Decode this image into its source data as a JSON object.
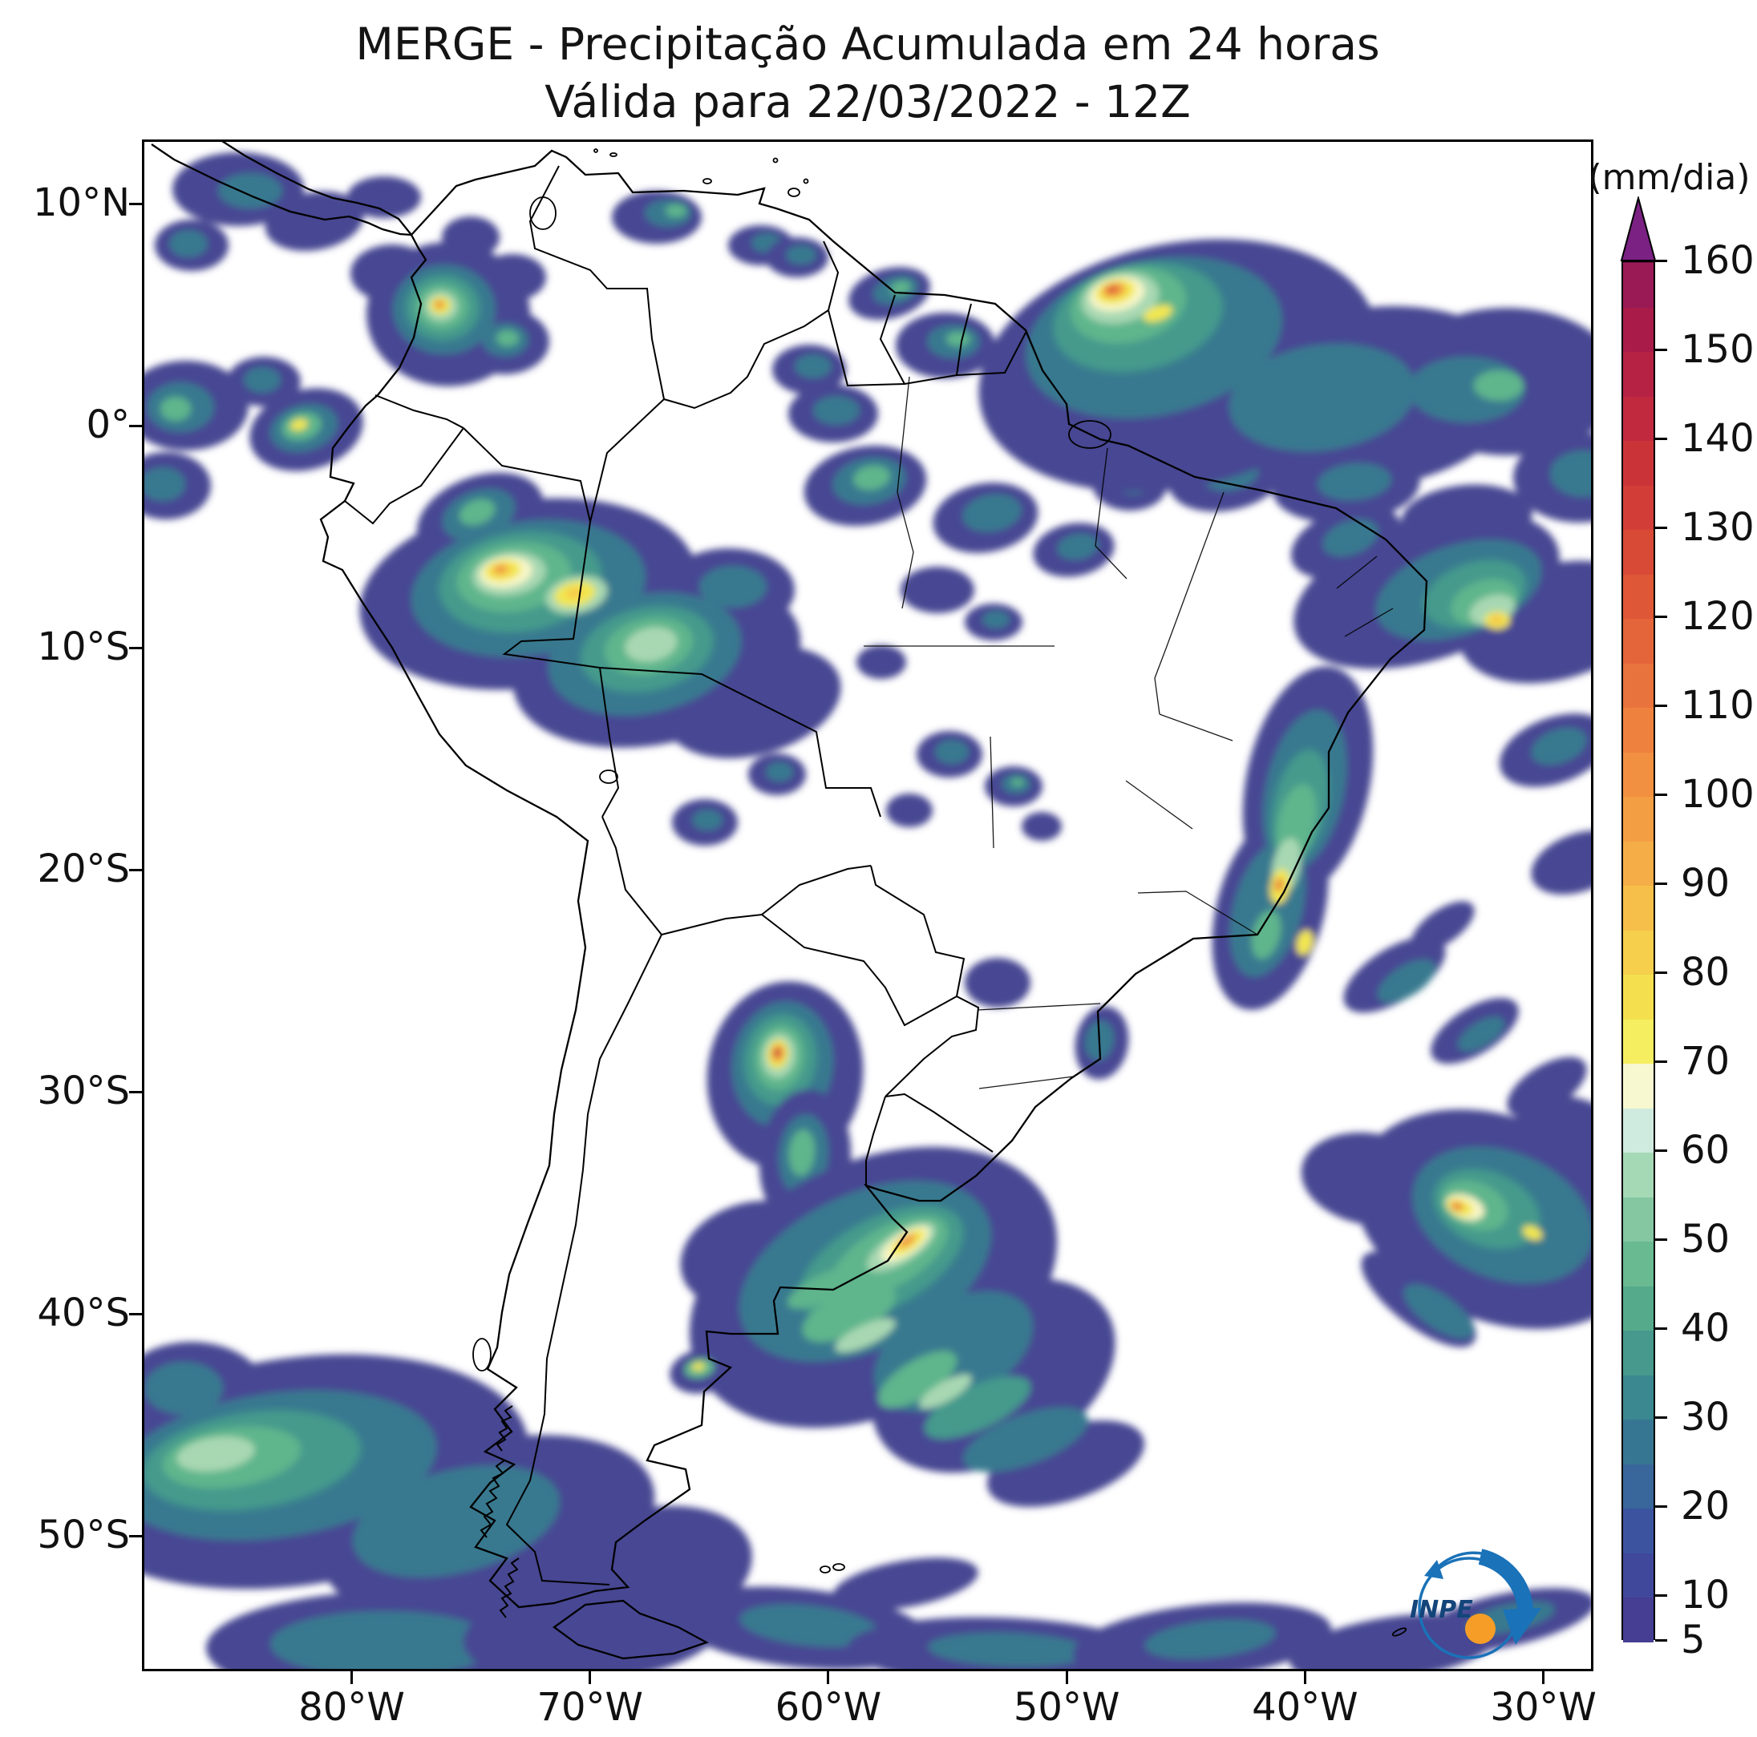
{
  "title": {
    "line1": "MERGE - Precipitação Acumulada em 24 horas",
    "line2": "Válida para 22/03/2022 - 12Z"
  },
  "colorbar": {
    "units": "(mm/dia)",
    "min": 5,
    "max": 160,
    "ticks": [
      160,
      150,
      140,
      130,
      120,
      110,
      100,
      90,
      80,
      70,
      60,
      50,
      40,
      30,
      20,
      10,
      5
    ],
    "over_color": "#7b2183",
    "segments": [
      {
        "from": 5,
        "to": 10,
        "color": "#453e92"
      },
      {
        "from": 10,
        "to": 15,
        "color": "#40489b"
      },
      {
        "from": 15,
        "to": 20,
        "color": "#3c54a0"
      },
      {
        "from": 20,
        "to": 25,
        "color": "#39669b"
      },
      {
        "from": 25,
        "to": 30,
        "color": "#377692"
      },
      {
        "from": 30,
        "to": 35,
        "color": "#3b8890"
      },
      {
        "from": 35,
        "to": 40,
        "color": "#46998c"
      },
      {
        "from": 40,
        "to": 45,
        "color": "#55aa8b"
      },
      {
        "from": 45,
        "to": 50,
        "color": "#69b991"
      },
      {
        "from": 50,
        "to": 55,
        "color": "#84c7a1"
      },
      {
        "from": 55,
        "to": 60,
        "color": "#a5d8b5"
      },
      {
        "from": 60,
        "to": 65,
        "color": "#cfeadf"
      },
      {
        "from": 65,
        "to": 70,
        "color": "#f7f8d0"
      },
      {
        "from": 70,
        "to": 75,
        "color": "#f5ee61"
      },
      {
        "from": 75,
        "to": 80,
        "color": "#f4e04e"
      },
      {
        "from": 80,
        "to": 85,
        "color": "#f6cf4d"
      },
      {
        "from": 85,
        "to": 90,
        "color": "#f6bf49"
      },
      {
        "from": 90,
        "to": 95,
        "color": "#f5ae47"
      },
      {
        "from": 95,
        "to": 100,
        "color": "#f49e44"
      },
      {
        "from": 100,
        "to": 105,
        "color": "#f29041"
      },
      {
        "from": 105,
        "to": 110,
        "color": "#ee813e"
      },
      {
        "from": 110,
        "to": 115,
        "color": "#e9733c"
      },
      {
        "from": 115,
        "to": 120,
        "color": "#e4653a"
      },
      {
        "from": 120,
        "to": 125,
        "color": "#de5737"
      },
      {
        "from": 125,
        "to": 130,
        "color": "#d84a36"
      },
      {
        "from": 130,
        "to": 135,
        "color": "#d23e37"
      },
      {
        "from": 135,
        "to": 140,
        "color": "#ca3439"
      },
      {
        "from": 140,
        "to": 145,
        "color": "#c12a3e"
      },
      {
        "from": 145,
        "to": 150,
        "color": "#b62244"
      },
      {
        "from": 150,
        "to": 155,
        "color": "#a91c4a"
      },
      {
        "from": 155,
        "to": 160,
        "color": "#9a1a55"
      }
    ]
  },
  "map": {
    "lat_ticks": [
      {
        "label": "10°N",
        "value": 10
      },
      {
        "label": "0°",
        "value": 0
      },
      {
        "label": "10°S",
        "value": -10
      },
      {
        "label": "20°S",
        "value": -20
      },
      {
        "label": "30°S",
        "value": -30
      },
      {
        "label": "40°S",
        "value": -40
      },
      {
        "label": "50°S",
        "value": -50
      }
    ],
    "lon_ticks": [
      {
        "label": "80°W",
        "value": -80
      },
      {
        "label": "70°W",
        "value": -70
      },
      {
        "label": "60°W",
        "value": -60
      },
      {
        "label": "50°W",
        "value": -50
      },
      {
        "label": "40°W",
        "value": -40
      },
      {
        "label": "30°W",
        "value": -30
      }
    ],
    "logo_text": "INPE"
  }
}
